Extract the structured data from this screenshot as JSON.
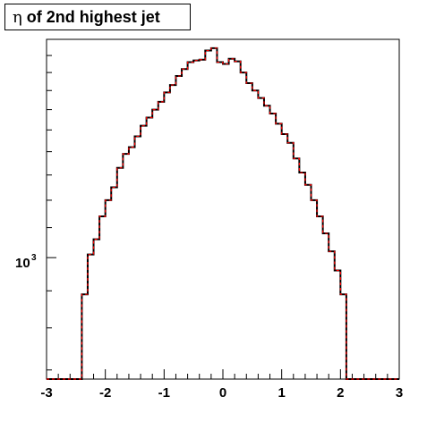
{
  "chart_data": {
    "type": "step",
    "title_symbol": "η",
    "title_text": "of 2nd highest jet",
    "xlim": [
      -3,
      3
    ],
    "ylim": [
      680,
      2000
    ],
    "ylog": true,
    "xticks": [
      -3,
      -2,
      -1,
      0,
      1,
      2,
      3
    ],
    "xtick_labels": [
      "-3",
      "-2",
      "-1",
      "0",
      "1",
      "2",
      "3"
    ],
    "ytick_label_base": "10",
    "ytick_label_exp": "3",
    "ytick_value": 1000,
    "bin_edges_start": -2.4,
    "bin_width": 0.1,
    "series": [
      {
        "color": "#000000",
        "values": [
          890,
          1010,
          1060,
          1140,
          1200,
          1250,
          1330,
          1390,
          1420,
          1470,
          1520,
          1560,
          1600,
          1640,
          1690,
          1730,
          1780,
          1820,
          1860,
          1870,
          1875,
          1930,
          1945,
          1860,
          1850,
          1880,
          1865,
          1800,
          1740,
          1700,
          1660,
          1620,
          1580,
          1530,
          1480,
          1440,
          1370,
          1310,
          1260,
          1200,
          1140,
          1080,
          1020,
          960,
          890,
          680,
          680,
          680
        ]
      },
      {
        "color": "#ff0000",
        "style": "dashed",
        "values": [
          890,
          1010,
          1060,
          1140,
          1200,
          1250,
          1330,
          1390,
          1420,
          1470,
          1520,
          1560,
          1600,
          1640,
          1690,
          1730,
          1780,
          1820,
          1860,
          1870,
          1875,
          1930,
          1945,
          1860,
          1850,
          1880,
          1865,
          1800,
          1740,
          1700,
          1660,
          1620,
          1580,
          1530,
          1480,
          1440,
          1370,
          1310,
          1260,
          1200,
          1140,
          1080,
          1020,
          960,
          890,
          680,
          680,
          680
        ]
      }
    ]
  }
}
